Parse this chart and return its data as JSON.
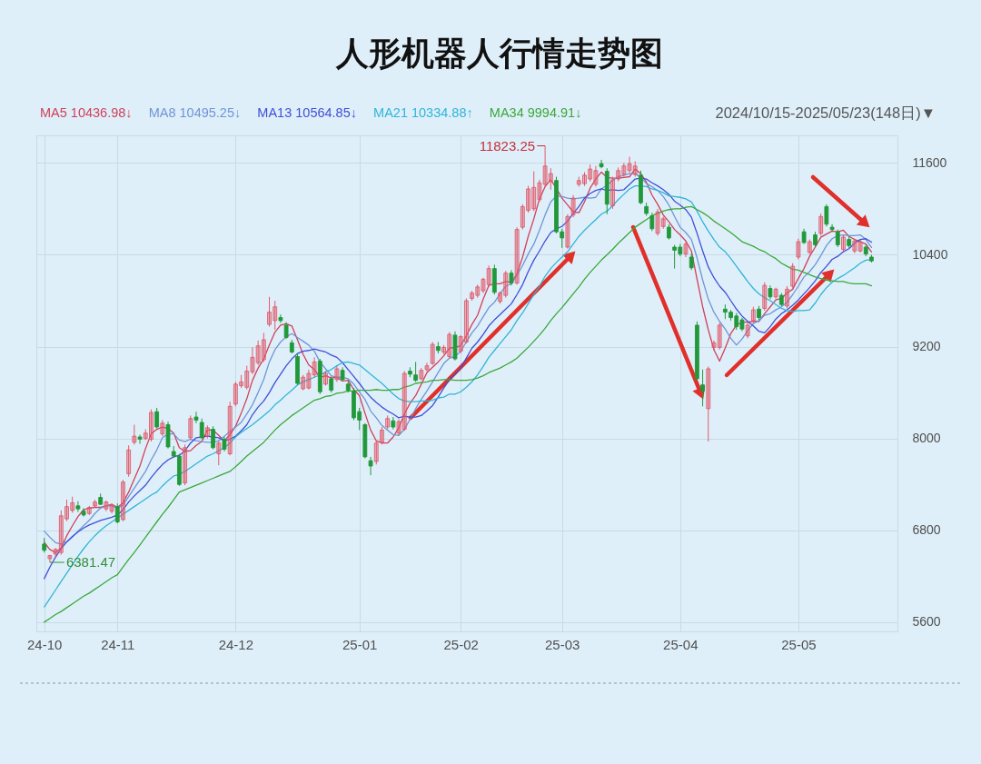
{
  "chart_data": {
    "type": "candlestick",
    "title": "人形机器人行情走势图",
    "categories": [
      "24-10",
      null,
      null,
      null,
      null,
      null,
      null,
      null,
      null,
      null,
      null,
      null,
      null,
      "24-11",
      null,
      null,
      null,
      null,
      null,
      null,
      null,
      null,
      null,
      null,
      null,
      null,
      null,
      null,
      null,
      null,
      null,
      null,
      null,
      null,
      "24-12",
      null,
      null,
      null,
      null,
      null,
      null,
      null,
      null,
      null,
      null,
      null,
      null,
      null,
      null,
      null,
      null,
      null,
      null,
      null,
      null,
      null,
      "25-01",
      null,
      null,
      null,
      null,
      null,
      null,
      null,
      null,
      null,
      null,
      null,
      null,
      null,
      null,
      null,
      null,
      null,
      "25-02",
      null,
      null,
      null,
      null,
      null,
      null,
      null,
      null,
      null,
      null,
      null,
      null,
      null,
      null,
      null,
      null,
      null,
      "25-03",
      null,
      null,
      null,
      null,
      null,
      null,
      null,
      null,
      null,
      null,
      null,
      null,
      null,
      null,
      null,
      null,
      null,
      null,
      null,
      null,
      "25-04",
      null,
      null,
      null,
      null,
      null,
      null,
      null,
      null,
      null,
      null,
      null,
      null,
      null,
      null,
      null,
      null,
      null,
      null,
      null,
      null,
      "25-05",
      null,
      null,
      null,
      null,
      null,
      null,
      null,
      null,
      null,
      null,
      null,
      null,
      null
    ],
    "ohlc": [
      [
        6620,
        6700,
        6510,
        6540
      ],
      [
        6430,
        6480,
        6381.47,
        6470
      ],
      [
        6490,
        6570,
        6450,
        6550
      ],
      [
        6510,
        7060,
        6480,
        6990
      ],
      [
        6950,
        7200,
        6920,
        7110
      ],
      [
        7060,
        7240,
        7030,
        7160
      ],
      [
        7120,
        7180,
        7040,
        7080
      ],
      [
        7050,
        7090,
        6980,
        7000
      ],
      [
        7020,
        7120,
        7000,
        7100
      ],
      [
        7120,
        7200,
        7100,
        7170
      ],
      [
        7230,
        7280,
        7130,
        7140
      ],
      [
        7080,
        7190,
        7050,
        7170
      ],
      [
        7050,
        7150,
        7020,
        7130
      ],
      [
        7110,
        7150,
        6890,
        6910
      ],
      [
        6940,
        7460,
        6920,
        7430
      ],
      [
        7540,
        7910,
        7500,
        7850
      ],
      [
        7950,
        8180,
        7920,
        8030
      ],
      [
        8020,
        8050,
        7930,
        7990
      ],
      [
        8000,
        8120,
        7980,
        8070
      ],
      [
        7990,
        8380,
        7960,
        8340
      ],
      [
        8350,
        8400,
        8130,
        8150
      ],
      [
        8060,
        8240,
        8030,
        8200
      ],
      [
        8180,
        8220,
        7870,
        7890
      ],
      [
        7830,
        7900,
        7750,
        7770
      ],
      [
        7770,
        7800,
        7380,
        7400
      ],
      [
        7420,
        7920,
        7390,
        7880
      ],
      [
        8010,
        8300,
        7980,
        8260
      ],
      [
        8280,
        8350,
        8200,
        8240
      ],
      [
        8210,
        8260,
        7990,
        8010
      ],
      [
        8030,
        8170,
        8000,
        8140
      ],
      [
        8120,
        8160,
        7860,
        7880
      ],
      [
        7800,
        7970,
        7650,
        7940
      ],
      [
        7990,
        8020,
        7830,
        7860
      ],
      [
        7800,
        8480,
        7780,
        8420
      ],
      [
        8450,
        8740,
        8420,
        8710
      ],
      [
        8690,
        8830,
        8660,
        8740
      ],
      [
        8670,
        8950,
        8640,
        8880
      ],
      [
        8870,
        9190,
        8840,
        9060
      ],
      [
        8990,
        9280,
        8960,
        9210
      ],
      [
        9030,
        9380,
        9000,
        9290
      ],
      [
        9490,
        9850,
        9460,
        9650
      ],
      [
        9540,
        9800,
        9420,
        9720
      ],
      [
        9580,
        9620,
        9510,
        9540
      ],
      [
        9480,
        9520,
        9300,
        9320
      ],
      [
        9250,
        9290,
        9110,
        9130
      ],
      [
        9070,
        9110,
        8700,
        8720
      ],
      [
        8650,
        8830,
        8630,
        8800
      ],
      [
        8660,
        8900,
        8640,
        8850
      ],
      [
        8830,
        9060,
        8800,
        9000
      ],
      [
        9010,
        9040,
        8580,
        8610
      ],
      [
        8710,
        8880,
        8690,
        8850
      ],
      [
        8780,
        8810,
        8600,
        8630
      ],
      [
        8770,
        8950,
        8740,
        8910
      ],
      [
        8890,
        8930,
        8750,
        8770
      ],
      [
        8710,
        8750,
        8600,
        8630
      ],
      [
        8620,
        8660,
        8240,
        8270
      ],
      [
        8350,
        8400,
        8110,
        8240
      ],
      [
        8180,
        8200,
        7740,
        7760
      ],
      [
        7710,
        7760,
        7520,
        7640
      ],
      [
        7700,
        7970,
        7660,
        7940
      ],
      [
        7950,
        8150,
        7920,
        8110
      ],
      [
        8150,
        8300,
        8120,
        8260
      ],
      [
        8230,
        8280,
        8120,
        8150
      ],
      [
        8070,
        8250,
        8040,
        8220
      ],
      [
        8120,
        8880,
        8100,
        8850
      ],
      [
        8880,
        8930,
        8800,
        8840
      ],
      [
        8830,
        9000,
        8740,
        8760
      ],
      [
        8780,
        8920,
        8760,
        8890
      ],
      [
        8900,
        8990,
        8870,
        8950
      ],
      [
        8980,
        9260,
        8960,
        9230
      ],
      [
        9200,
        9260,
        9110,
        9150
      ],
      [
        9130,
        9220,
        9100,
        9190
      ],
      [
        9070,
        9390,
        9040,
        9360
      ],
      [
        9350,
        9400,
        9020,
        9040
      ],
      [
        9140,
        9350,
        9110,
        9330
      ],
      [
        9260,
        9830,
        9240,
        9800
      ],
      [
        9830,
        9930,
        9800,
        9900
      ],
      [
        9870,
        10010,
        9840,
        9980
      ],
      [
        9930,
        10100,
        9900,
        10080
      ],
      [
        10010,
        10260,
        9980,
        10220
      ],
      [
        10220,
        10270,
        9880,
        9910
      ],
      [
        9790,
        9920,
        9760,
        9900
      ],
      [
        9870,
        10190,
        9840,
        10160
      ],
      [
        10160,
        10200,
        10000,
        10030
      ],
      [
        10030,
        10760,
        10010,
        10730
      ],
      [
        10760,
        11060,
        10730,
        11030
      ],
      [
        10980,
        11300,
        10950,
        11260
      ],
      [
        11000,
        11490,
        10970,
        11280
      ],
      [
        11120,
        11380,
        11090,
        11340
      ],
      [
        11320,
        11823.25,
        11290,
        11560
      ],
      [
        11360,
        11530,
        11250,
        11460
      ],
      [
        11370,
        11420,
        10680,
        10700
      ],
      [
        10700,
        10740,
        10490,
        10620
      ],
      [
        10500,
        10930,
        10480,
        10900
      ],
      [
        10920,
        11180,
        10890,
        11140
      ],
      [
        11320,
        11420,
        11290,
        11370
      ],
      [
        11330,
        11480,
        11300,
        11440
      ],
      [
        11390,
        11580,
        11360,
        11520
      ],
      [
        11320,
        11560,
        11290,
        11500
      ],
      [
        11590,
        11640,
        11530,
        11550
      ],
      [
        11490,
        11530,
        10930,
        11060
      ],
      [
        11040,
        11420,
        11000,
        11380
      ],
      [
        11390,
        11540,
        11360,
        11500
      ],
      [
        11450,
        11600,
        11420,
        11560
      ],
      [
        11500,
        11680,
        11470,
        11590
      ],
      [
        11450,
        11620,
        11420,
        11560
      ],
      [
        11440,
        11500,
        11060,
        11080
      ],
      [
        11030,
        11080,
        10910,
        10940
      ],
      [
        10910,
        10950,
        10710,
        10740
      ],
      [
        10680,
        11000,
        10650,
        10960
      ],
      [
        10770,
        10900,
        10740,
        10870
      ],
      [
        10760,
        10800,
        10600,
        10620
      ],
      [
        10500,
        10530,
        10220,
        10460
      ],
      [
        10500,
        10540,
        10380,
        10410
      ],
      [
        10410,
        10580,
        10370,
        10540
      ],
      [
        10370,
        10420,
        10200,
        10230
      ],
      [
        9480,
        9530,
        8760,
        8780
      ],
      [
        8700,
        8900,
        8420,
        8620
      ],
      [
        8390,
        8940,
        7960,
        8910
      ],
      [
        9190,
        9280,
        9150,
        9250
      ],
      [
        9190,
        9510,
        9160,
        9480
      ],
      [
        9690,
        9750,
        9560,
        9650
      ],
      [
        9650,
        9680,
        9540,
        9580
      ],
      [
        9600,
        9640,
        9420,
        9460
      ],
      [
        9550,
        9580,
        9400,
        9430
      ],
      [
        9340,
        9510,
        9310,
        9480
      ],
      [
        9540,
        9720,
        9510,
        9680
      ],
      [
        9690,
        9730,
        9550,
        9580
      ],
      [
        9700,
        10040,
        9670,
        10000
      ],
      [
        9960,
        10000,
        9820,
        9850
      ],
      [
        9850,
        9970,
        9820,
        9950
      ],
      [
        9870,
        9900,
        9730,
        9750
      ],
      [
        9730,
        9990,
        9700,
        9950
      ],
      [
        9990,
        10290,
        9960,
        10250
      ],
      [
        10370,
        10610,
        10340,
        10570
      ],
      [
        10700,
        10740,
        10540,
        10560
      ],
      [
        10430,
        10600,
        10410,
        10570
      ],
      [
        10660,
        10700,
        10500,
        10530
      ],
      [
        10680,
        10940,
        10650,
        10900
      ],
      [
        11030,
        11060,
        10770,
        10800
      ],
      [
        10760,
        10800,
        10700,
        10730
      ],
      [
        10700,
        10730,
        10500,
        10530
      ],
      [
        10470,
        10660,
        10440,
        10630
      ],
      [
        10600,
        10640,
        10490,
        10520
      ],
      [
        10450,
        10600,
        10420,
        10580
      ],
      [
        10450,
        10590,
        10430,
        10570
      ],
      [
        10500,
        10530,
        10380,
        10410
      ],
      [
        10370,
        10400,
        10300,
        10320
      ]
    ],
    "colors": [
      "#21993b",
      "#e05a6b",
      "#e05a6b",
      "#e05a6b",
      "#e05a6b",
      "#e05a6b",
      "#21993b",
      "#21993b",
      "#e05a6b",
      "#e05a6b",
      "#21993b",
      "#e05a6b",
      "#e05a6b",
      "#21993b",
      "#e05a6b",
      "#e05a6b",
      "#e05a6b",
      "#21993b",
      "#e05a6b",
      "#e05a6b",
      "#21993b",
      "#e05a6b",
      "#21993b",
      "#21993b",
      "#21993b",
      "#e05a6b",
      "#e05a6b",
      "#21993b",
      "#21993b",
      "#e05a6b",
      "#21993b",
      "#e05a6b",
      "#21993b",
      "#e05a6b",
      "#e05a6b",
      "#e05a6b",
      "#e05a6b",
      "#e05a6b",
      "#e05a6b",
      "#e05a6b",
      "#e05a6b",
      "#e05a6b",
      "#21993b",
      "#21993b",
      "#21993b",
      "#21993b",
      "#e05a6b",
      "#e05a6b",
      "#e05a6b",
      "#21993b",
      "#e05a6b",
      "#21993b",
      "#e05a6b",
      "#21993b",
      "#21993b",
      "#21993b",
      "#21993b",
      "#21993b",
      "#21993b",
      "#e05a6b",
      "#e05a6b",
      "#e05a6b",
      "#21993b",
      "#e05a6b",
      "#e05a6b",
      "#21993b",
      "#21993b",
      "#e05a6b",
      "#e05a6b",
      "#e05a6b",
      "#21993b",
      "#e05a6b",
      "#e05a6b",
      "#21993b",
      "#e05a6b",
      "#e05a6b",
      "#e05a6b",
      "#e05a6b",
      "#e05a6b",
      "#e05a6b",
      "#21993b",
      "#e05a6b",
      "#e05a6b",
      "#21993b",
      "#e05a6b",
      "#e05a6b",
      "#e05a6b",
      "#e05a6b",
      "#e05a6b",
      "#e05a6b",
      "#e05a6b",
      "#21993b",
      "#21993b",
      "#e05a6b",
      "#e05a6b",
      "#e05a6b",
      "#e05a6b",
      "#e05a6b",
      "#e05a6b",
      "#21993b",
      "#21993b",
      "#e05a6b",
      "#e05a6b",
      "#e05a6b",
      "#e05a6b",
      "#e05a6b",
      "#21993b",
      "#21993b",
      "#21993b",
      "#e05a6b",
      "#e05a6b",
      "#21993b",
      "#21993b",
      "#21993b",
      "#e05a6b",
      "#21993b",
      "#21993b",
      "#21993b",
      "#e05a6b",
      "#e05a6b",
      "#e05a6b",
      "#21993b",
      "#21993b",
      "#21993b",
      "#21993b",
      "#e05a6b",
      "#e05a6b",
      "#21993b",
      "#e05a6b",
      "#21993b",
      "#e05a6b",
      "#21993b",
      "#e05a6b",
      "#e05a6b",
      "#e05a6b",
      "#21993b",
      "#e05a6b",
      "#21993b",
      "#e05a6b",
      "#21993b",
      "#21993b",
      "#21993b",
      "#e05a6b",
      "#21993b",
      "#e05a6b",
      "#e05a6b",
      "#21993b",
      "#21993b"
    ],
    "series": [
      {
        "type": "line",
        "name": "MA5 10436.98↓",
        "color": "#d0405a",
        "values": [
          6640,
          6550,
          6510,
          6570,
          6730,
          6860,
          6980,
          7070,
          7090,
          7100,
          7100,
          7120,
          7140,
          7100,
          7160,
          7300,
          7470,
          7640,
          7870,
          8060,
          8120,
          8150,
          8130,
          8070,
          7880,
          7830,
          7840,
          7910,
          7960,
          8110,
          8110,
          8040,
          7970,
          8050,
          8160,
          8330,
          8520,
          8760,
          8920,
          9040,
          9220,
          9390,
          9480,
          9500,
          9470,
          9290,
          9100,
          8960,
          8900,
          8800,
          8820,
          8790,
          8800,
          8750,
          8760,
          8640,
          8560,
          8330,
          8110,
          7970,
          7940,
          7940,
          8020,
          8140,
          8320,
          8460,
          8560,
          8710,
          8860,
          8930,
          9000,
          9080,
          9180,
          9190,
          9210,
          9340,
          9490,
          9610,
          9820,
          10000,
          10020,
          10020,
          10050,
          10040,
          10150,
          10370,
          10640,
          10870,
          11130,
          11290,
          11380,
          11270,
          11140,
          11050,
          10960,
          10950,
          11090,
          11270,
          11390,
          11480,
          11410,
          11400,
          11400,
          11410,
          11420,
          11520,
          11460,
          11350,
          11180,
          11060,
          10920,
          10830,
          10730,
          10660,
          10580,
          10450,
          10080,
          9720,
          9420,
          9160,
          9010,
          9180,
          9370,
          9480,
          9520,
          9520,
          9530,
          9530,
          9630,
          9720,
          9810,
          9830,
          9900,
          9950,
          10090,
          10220,
          10380,
          10500,
          10630,
          10670,
          10710,
          10700,
          10720,
          10640,
          10600,
          10570,
          10540,
          10436.98
        ]
      },
      {
        "type": "line",
        "name": "MA8 10495.25↓",
        "color": "#6f95d8",
        "values": [
          6790,
          6710,
          6640,
          6620,
          6650,
          6710,
          6790,
          6860,
          6930,
          7020,
          7090,
          7120,
          7120,
          7090,
          7130,
          7240,
          7350,
          7460,
          7570,
          7720,
          7850,
          8010,
          8060,
          8060,
          7980,
          7960,
          7990,
          7970,
          7960,
          7950,
          7950,
          7970,
          8030,
          8090,
          8150,
          8210,
          8320,
          8440,
          8600,
          8770,
          9000,
          9160,
          9260,
          9330,
          9370,
          9320,
          9270,
          9220,
          9140,
          9000,
          8910,
          8820,
          8800,
          8800,
          8780,
          8710,
          8610,
          8510,
          8360,
          8270,
          8170,
          8110,
          8050,
          8040,
          8120,
          8250,
          8390,
          8510,
          8620,
          8740,
          8860,
          8980,
          9050,
          9070,
          9140,
          9260,
          9380,
          9470,
          9590,
          9710,
          9780,
          9890,
          9990,
          10020,
          10130,
          10260,
          10410,
          10540,
          10720,
          10920,
          11090,
          11170,
          11160,
          11140,
          11130,
          11140,
          11150,
          11140,
          11150,
          11260,
          11310,
          11370,
          11420,
          11440,
          11460,
          11460,
          11410,
          11330,
          11290,
          11240,
          11160,
          11050,
          10900,
          10760,
          10690,
          10600,
          10360,
          10070,
          9820,
          9650,
          9530,
          9430,
          9310,
          9220,
          9300,
          9410,
          9500,
          9540,
          9610,
          9630,
          9680,
          9720,
          9780,
          9880,
          9990,
          10110,
          10180,
          10270,
          10390,
          10520,
          10610,
          10650,
          10660,
          10650,
          10650,
          10660,
          10600,
          10495.25
        ]
      },
      {
        "type": "line",
        "name": "MA13 10564.85↓",
        "color": "#3f4fd8",
        "values": [
          6170,
          6320,
          6450,
          6560,
          6650,
          6720,
          6780,
          6830,
          6870,
          6900,
          6930,
          6950,
          6970,
          7000,
          7070,
          7170,
          7250,
          7320,
          7390,
          7490,
          7580,
          7660,
          7720,
          7760,
          7780,
          7840,
          7940,
          8010,
          8020,
          8030,
          8020,
          8010,
          7970,
          7990,
          8030,
          8100,
          8180,
          8310,
          8410,
          8490,
          8600,
          8730,
          8840,
          8950,
          9040,
          9110,
          9140,
          9150,
          9170,
          9150,
          9130,
          9090,
          9060,
          8990,
          8900,
          8810,
          8720,
          8620,
          8540,
          8470,
          8410,
          8360,
          8320,
          8270,
          8290,
          8280,
          8280,
          8300,
          8360,
          8430,
          8540,
          8660,
          8770,
          8840,
          8920,
          9050,
          9180,
          9260,
          9360,
          9470,
          9550,
          9620,
          9690,
          9760,
          9880,
          10010,
          10180,
          10330,
          10450,
          10580,
          10690,
          10740,
          10770,
          10840,
          10940,
          11030,
          11140,
          11200,
          11240,
          11260,
          11240,
          11250,
          11240,
          11250,
          11320,
          11390,
          11400,
          11390,
          11340,
          11300,
          11250,
          11190,
          11100,
          11050,
          10990,
          10890,
          10680,
          10450,
          10240,
          10100,
          9990,
          9910,
          9800,
          9690,
          9600,
          9530,
          9470,
          9400,
          9380,
          9460,
          9560,
          9630,
          9680,
          9740,
          9810,
          9890,
          9970,
          10060,
          10170,
          10250,
          10340,
          10380,
          10440,
          10480,
          10550,
          10600,
          10610,
          10564.85
        ]
      },
      {
        "type": "line",
        "name": "MA21 10334.88↑",
        "color": "#2fb5d8",
        "values": [
          5800,
          5910,
          6020,
          6130,
          6240,
          6350,
          6460,
          6560,
          6650,
          6730,
          6800,
          6860,
          6910,
          6960,
          7010,
          7060,
          7110,
          7160,
          7210,
          7260,
          7300,
          7380,
          7450,
          7510,
          7530,
          7570,
          7620,
          7670,
          7720,
          7770,
          7800,
          7840,
          7880,
          7940,
          8020,
          8080,
          8130,
          8180,
          8240,
          8300,
          8360,
          8440,
          8500,
          8570,
          8630,
          8700,
          8740,
          8770,
          8800,
          8830,
          8870,
          8900,
          8950,
          8990,
          9000,
          8980,
          8960,
          8900,
          8840,
          8780,
          8720,
          8650,
          8580,
          8520,
          8490,
          8480,
          8480,
          8490,
          8490,
          8500,
          8530,
          8540,
          8580,
          8580,
          8610,
          8670,
          8740,
          8830,
          8940,
          9060,
          9150,
          9240,
          9330,
          9420,
          9540,
          9640,
          9760,
          9880,
          9990,
          10120,
          10220,
          10300,
          10370,
          10440,
          10540,
          10640,
          10720,
          10790,
          10860,
          10930,
          10970,
          11040,
          11120,
          11190,
          11260,
          11300,
          11300,
          11290,
          11260,
          11240,
          11210,
          11170,
          11160,
          11150,
          11130,
          11090,
          10970,
          10830,
          10710,
          10600,
          10500,
          10440,
          10350,
          10250,
          10150,
          10050,
          9960,
          9890,
          9840,
          9800,
          9750,
          9700,
          9670,
          9660,
          9670,
          9670,
          9680,
          9770,
          9880,
          9970,
          10040,
          10090,
          10130,
          10180,
          10230,
          10290,
          10330,
          10334.88
        ]
      },
      {
        "type": "line",
        "name": "MA34 9994.91↓",
        "color": "#3aa83a",
        "values": [
          5600,
          5650,
          5700,
          5740,
          5790,
          5840,
          5890,
          5940,
          5980,
          6030,
          6080,
          6130,
          6180,
          6220,
          6320,
          6420,
          6510,
          6610,
          6710,
          6810,
          6910,
          7010,
          7100,
          7200,
          7300,
          7330,
          7360,
          7390,
          7420,
          7450,
          7480,
          7510,
          7540,
          7570,
          7630,
          7700,
          7770,
          7830,
          7890,
          7950,
          8030,
          8110,
          8180,
          8240,
          8300,
          8350,
          8400,
          8450,
          8500,
          8520,
          8550,
          8560,
          8590,
          8600,
          8620,
          8620,
          8630,
          8630,
          8630,
          8640,
          8630,
          8630,
          8640,
          8640,
          8670,
          8690,
          8720,
          8730,
          8740,
          8760,
          8760,
          8770,
          8770,
          8760,
          8760,
          8760,
          8770,
          8790,
          8820,
          8860,
          8890,
          8920,
          8960,
          9000,
          9050,
          9120,
          9190,
          9270,
          9350,
          9440,
          9540,
          9630,
          9710,
          9800,
          9890,
          9980,
          10080,
          10170,
          10250,
          10330,
          10400,
          10470,
          10550,
          10620,
          10690,
          10760,
          10810,
          10860,
          10910,
          10940,
          10970,
          10990,
          11000,
          11000,
          11020,
          11030,
          10990,
          10950,
          10900,
          10840,
          10790,
          10740,
          10690,
          10630,
          10570,
          10540,
          10510,
          10470,
          10440,
          10390,
          10350,
          10290,
          10250,
          10210,
          10200,
          10170,
          10140,
          10110,
          10090,
          10070,
          10060,
          10050,
          10050,
          10030,
          10020,
          10020,
          10020,
          9994.91
        ]
      }
    ],
    "ylim": [
      5480,
      11960
    ],
    "yticks": [
      5600,
      6800,
      8000,
      9200,
      10400,
      11600
    ],
    "annotations": [
      "2024/10/15-2025/05/23(148日)▼",
      "11823.25",
      "6381.47"
    ],
    "legend": "top left",
    "grid": true
  }
}
